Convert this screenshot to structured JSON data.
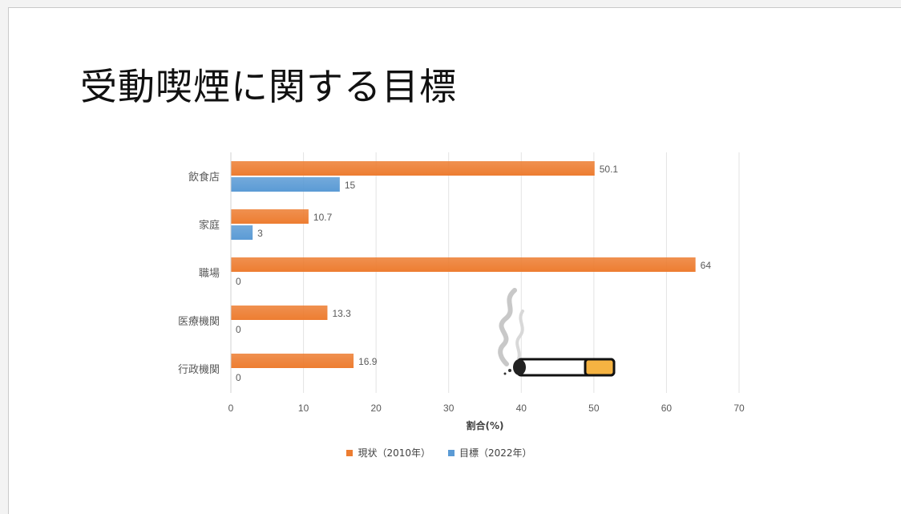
{
  "slide": {
    "title": "受動喫煙に関する目標"
  },
  "chart_data": {
    "type": "bar",
    "orientation": "horizontal",
    "categories": [
      "飲食店",
      "家庭",
      "職場",
      "医療機関",
      "行政機関"
    ],
    "series": [
      {
        "name": "現状（2010年）",
        "values": [
          50.1,
          10.7,
          64,
          13.3,
          16.9
        ],
        "color": "#ed7d31"
      },
      {
        "name": "目標（2022年）",
        "values": [
          15,
          3,
          0,
          0,
          0
        ],
        "color": "#5b9bd5"
      }
    ],
    "xlabel": "割合(%)",
    "xlim": [
      0,
      70
    ],
    "xticks": [
      0,
      10,
      20,
      30,
      40,
      50,
      60,
      70
    ],
    "grid": true,
    "legend_position": "bottom"
  },
  "decorations": {
    "icon": "cigarette-smoke-icon"
  }
}
